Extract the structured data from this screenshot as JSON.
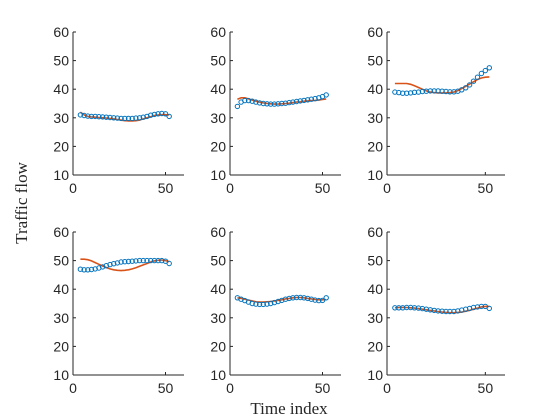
{
  "chart_data": {
    "type": "line",
    "layout": "2x3 grid of subplots",
    "xlabel": "Time index",
    "ylabel": "Traffic flow",
    "xlim": [
      0,
      60
    ],
    "ylim": [
      10,
      60
    ],
    "xticks": [
      0,
      50
    ],
    "yticks": [
      10,
      20,
      30,
      40,
      50,
      60
    ],
    "grid": false,
    "colors": {
      "fit_line": "#D95319",
      "observed_markers": "#0072BD",
      "axes": "#262626"
    },
    "x": [
      4,
      6,
      8,
      10,
      12,
      14,
      16,
      18,
      20,
      22,
      24,
      26,
      28,
      30,
      32,
      34,
      36,
      38,
      40,
      42,
      44,
      46,
      48,
      50,
      52
    ],
    "panels": [
      {
        "name": "panel-1",
        "series": [
          {
            "type": "line",
            "values": [
              32,
              31,
              30.5,
              30.3,
              30.2,
              30.1,
              30,
              29.9,
              29.8,
              29.6,
              29.4,
              29.2,
              29,
              28.9,
              28.9,
              29,
              29.2,
              29.6,
              30,
              30.4,
              30.8,
              31,
              31.1,
              31.1,
              31
            ]
          },
          {
            "type": "scatter",
            "marker": "circle",
            "values": [
              31,
              30.8,
              30.6,
              30.5,
              30.5,
              30.4,
              30.3,
              30.2,
              30.1,
              30,
              29.9,
              29.8,
              29.8,
              29.8,
              29.8,
              29.9,
              30,
              30.2,
              30.5,
              30.9,
              31.2,
              31.4,
              31.5,
              31.4,
              30.5
            ]
          }
        ]
      },
      {
        "name": "panel-2",
        "series": [
          {
            "type": "line",
            "values": [
              36.5,
              37,
              37,
              36.6,
              36.2,
              35.8,
              35.5,
              35.2,
              35,
              34.9,
              34.8,
              34.8,
              34.9,
              35,
              35.1,
              35.3,
              35.5,
              35.6,
              35.8,
              35.9,
              36,
              36.1,
              36.2,
              36.4,
              36.6
            ]
          },
          {
            "type": "scatter",
            "marker": "circle",
            "values": [
              34,
              35.5,
              36,
              36,
              35.8,
              35.5,
              35.2,
              35,
              34.9,
              34.8,
              34.8,
              34.9,
              35,
              35.1,
              35.3,
              35.5,
              35.7,
              35.9,
              36.1,
              36.3,
              36.5,
              36.7,
              37,
              37.4,
              38
            ]
          }
        ]
      },
      {
        "name": "panel-3",
        "series": [
          {
            "type": "line",
            "values": [
              42,
              42,
              42,
              42,
              41.7,
              41.2,
              40.6,
              40,
              39.4,
              39,
              38.8,
              38.7,
              38.7,
              38.7,
              38.8,
              39,
              39.5,
              40.2,
              41,
              41.8,
              42.6,
              43.4,
              43.9,
              44.2,
              44.3
            ]
          },
          {
            "type": "scatter",
            "marker": "circle",
            "values": [
              39,
              38.8,
              38.6,
              38.6,
              38.7,
              38.9,
              39,
              39.2,
              39.3,
              39.4,
              39.4,
              39.4,
              39.3,
              39.2,
              39.1,
              39.1,
              39.3,
              39.8,
              40.5,
              41.5,
              42.8,
              44.2,
              45.5,
              46.5,
              47.5
            ]
          }
        ]
      },
      {
        "name": "panel-4",
        "series": [
          {
            "type": "line",
            "values": [
              50.5,
              50.5,
              50.3,
              49.9,
              49.3,
              48.7,
              48.1,
              47.6,
              47.1,
              46.8,
              46.6,
              46.5,
              46.6,
              46.8,
              47.1,
              47.5,
              48,
              48.5,
              49,
              49.5,
              49.9,
              50.1,
              50.2,
              50,
              49.6
            ]
          },
          {
            "type": "scatter",
            "marker": "circle",
            "values": [
              47,
              46.8,
              46.8,
              46.9,
              47.1,
              47.4,
              47.8,
              48.2,
              48.6,
              48.9,
              49.2,
              49.5,
              49.6,
              49.7,
              49.8,
              49.9,
              50,
              50,
              50,
              50,
              50,
              50,
              50,
              49.8,
              49
            ]
          }
        ]
      },
      {
        "name": "panel-5",
        "series": [
          {
            "type": "line",
            "values": [
              37,
              36.8,
              36.5,
              36.2,
              35.9,
              35.6,
              35.5,
              35.5,
              35.6,
              35.7,
              35.9,
              36.1,
              36.3,
              36.6,
              36.8,
              37,
              37.1,
              37.1,
              37,
              36.8,
              36.6,
              36.4,
              36.3,
              36.3,
              36.4
            ]
          },
          {
            "type": "scatter",
            "marker": "circle",
            "values": [
              37,
              36.5,
              36,
              35.5,
              35,
              34.8,
              34.7,
              34.7,
              34.8,
              35,
              35.3,
              35.7,
              36.1,
              36.5,
              36.8,
              37,
              37.1,
              37.1,
              37,
              36.8,
              36.5,
              36.2,
              36,
              36.1,
              37
            ]
          }
        ]
      },
      {
        "name": "panel-6",
        "series": [
          {
            "type": "line",
            "values": [
              33.5,
              33.6,
              33.6,
              33.6,
              33.5,
              33.4,
              33.2,
              33,
              32.8,
              32.6,
              32.4,
              32.2,
              32,
              31.9,
              31.8,
              31.8,
              31.9,
              32,
              32.3,
              32.6,
              33,
              33.4,
              33.8,
              34,
              34
            ]
          },
          {
            "type": "scatter",
            "marker": "circle",
            "values": [
              33.5,
              33.5,
              33.5,
              33.6,
              33.6,
              33.5,
              33.4,
              33.2,
              33,
              32.8,
              32.6,
              32.4,
              32.3,
              32.2,
              32.2,
              32.2,
              32.4,
              32.7,
              33,
              33.3,
              33.6,
              33.8,
              34,
              34,
              33.3
            ]
          }
        ]
      }
    ]
  }
}
